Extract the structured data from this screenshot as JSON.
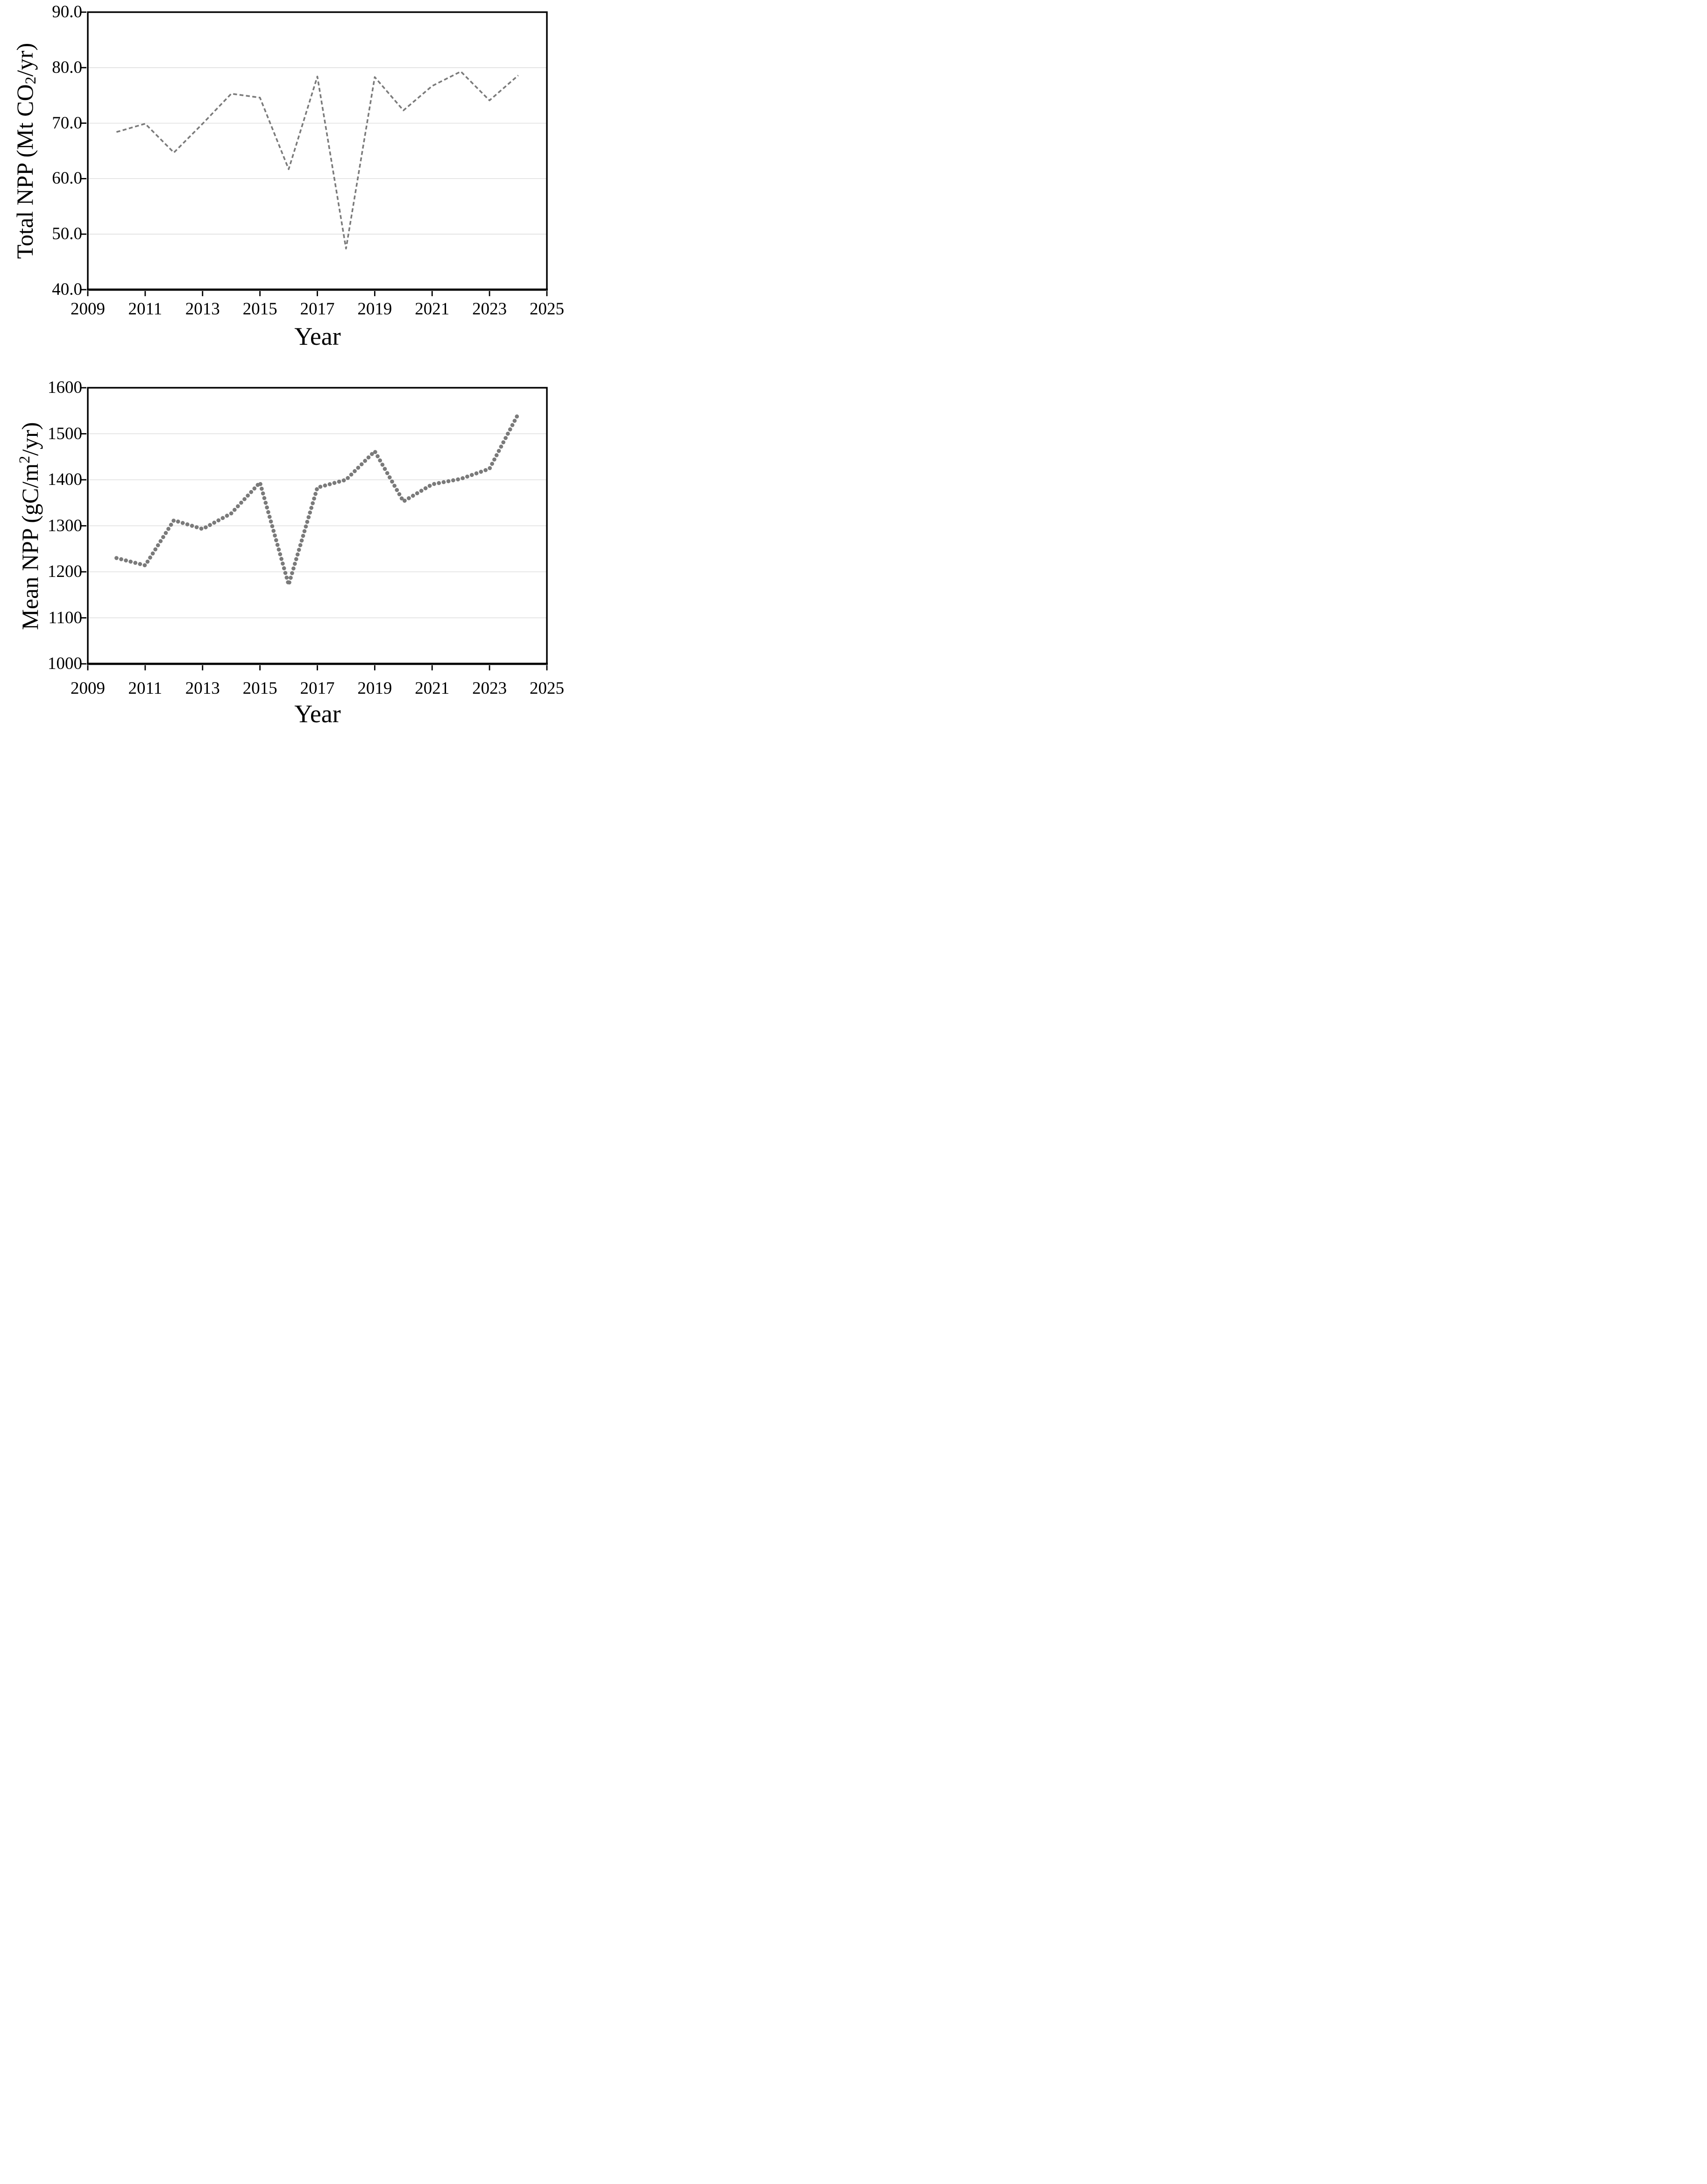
{
  "figure": {
    "background": "#ffffff",
    "colors": {
      "line": "#7a7a7a",
      "grid": "#d9d9d9",
      "axis": "#000000",
      "text": "#000000"
    }
  },
  "chart_data": [
    {
      "type": "line",
      "line_style": "dashed",
      "title": "",
      "xlabel": "Year",
      "ylabel_parts": {
        "pre": "Total NPP (Mt CO",
        "sub": "2",
        "post": "/yr)"
      },
      "xlim": [
        2009,
        2025
      ],
      "ylim": [
        40,
        90
      ],
      "grid": true,
      "legend_position": "none",
      "x_ticks": [
        {
          "v": 2009,
          "label": "2009"
        },
        {
          "v": 2011,
          "label": "2011"
        },
        {
          "v": 2013,
          "label": "2013"
        },
        {
          "v": 2015,
          "label": "2015"
        },
        {
          "v": 2017,
          "label": "2017"
        },
        {
          "v": 2019,
          "label": "2019"
        },
        {
          "v": 2021,
          "label": "2021"
        },
        {
          "v": 2023,
          "label": "2023"
        },
        {
          "v": 2025,
          "label": "2025"
        }
      ],
      "y_ticks": [
        {
          "v": 90,
          "label": "90.0"
        },
        {
          "v": 80,
          "label": "80.0"
        },
        {
          "v": 70,
          "label": "70.0"
        },
        {
          "v": 60,
          "label": "60.0"
        },
        {
          "v": 50,
          "label": "50.0"
        },
        {
          "v": 40,
          "label": "40.0"
        }
      ],
      "series": [
        {
          "name": "Total NPP",
          "x": [
            2010,
            2011,
            2012,
            2013,
            2014,
            2015,
            2016,
            2017,
            2018,
            2019,
            2020,
            2021,
            2022,
            2023,
            2024
          ],
          "values": [
            68.4,
            69.9,
            64.7,
            69.9,
            75.3,
            74.6,
            61.7,
            78.4,
            47.4,
            78.3,
            72.3,
            76.7,
            79.3,
            74.1,
            78.6
          ]
        }
      ]
    },
    {
      "type": "line",
      "line_style": "dotted",
      "title": "",
      "xlabel": "Year",
      "ylabel_parts": {
        "pre": "Mean NPP (gC/m",
        "sup": "2",
        "post": "/yr)"
      },
      "xlim": [
        2009,
        2025
      ],
      "ylim": [
        1000,
        1600
      ],
      "grid": true,
      "legend_position": "none",
      "x_ticks": [
        {
          "v": 2009,
          "label": "2009"
        },
        {
          "v": 2011,
          "label": "2011"
        },
        {
          "v": 2013,
          "label": "2013"
        },
        {
          "v": 2015,
          "label": "2015"
        },
        {
          "v": 2017,
          "label": "2017"
        },
        {
          "v": 2019,
          "label": "2019"
        },
        {
          "v": 2021,
          "label": "2021"
        },
        {
          "v": 2023,
          "label": "2023"
        },
        {
          "v": 2025,
          "label": "2025"
        }
      ],
      "y_ticks": [
        {
          "v": 1600,
          "label": "1600"
        },
        {
          "v": 1500,
          "label": "1500"
        },
        {
          "v": 1400,
          "label": "1400"
        },
        {
          "v": 1300,
          "label": "1300"
        },
        {
          "v": 1200,
          "label": "1200"
        },
        {
          "v": 1100,
          "label": "1100"
        },
        {
          "v": 1000,
          "label": "1000"
        }
      ],
      "series": [
        {
          "name": "Mean NPP",
          "x": [
            2010,
            2011,
            2012,
            2013,
            2014,
            2015,
            2016,
            2017,
            2018,
            2019,
            2020,
            2021,
            2022,
            2023,
            2024
          ],
          "values": [
            1230,
            1214,
            1312,
            1293,
            1327,
            1394,
            1172,
            1383,
            1400,
            1462,
            1353,
            1390,
            1402,
            1424,
            1543
          ]
        }
      ]
    }
  ]
}
